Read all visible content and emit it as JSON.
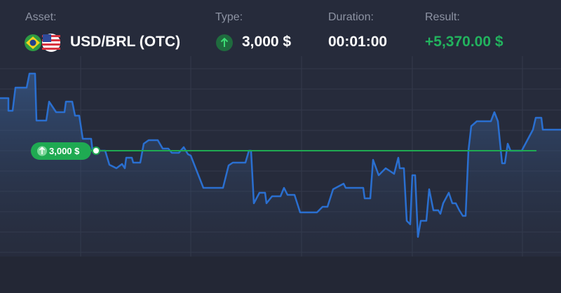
{
  "header": {
    "asset": {
      "label": "Asset:",
      "value": "USD/BRL (OTC)"
    },
    "type": {
      "label": "Type:",
      "value": "3,000 $"
    },
    "duration": {
      "label": "Duration:",
      "value": "00:01:00"
    },
    "result": {
      "label": "Result:",
      "value": "+5,370.00 $"
    }
  },
  "chart": {
    "entry_marker": "3,000 $"
  }
}
